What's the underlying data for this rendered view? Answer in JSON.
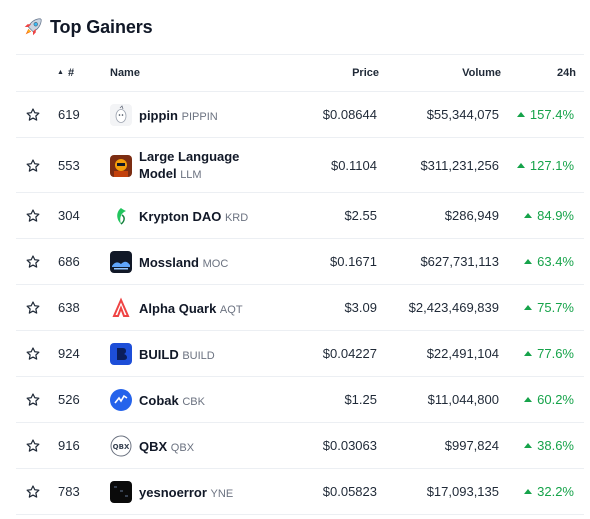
{
  "widget": {
    "title": "Top Gainers",
    "icon": "rocket-icon"
  },
  "columns": {
    "sort": "▲",
    "rank": "#",
    "name": "Name",
    "price": "Price",
    "volume": "Volume",
    "change": "24h"
  },
  "rows": [
    {
      "rank": "619",
      "name": "pippin",
      "symbol": "PIPPIN",
      "price": "$0.08644",
      "volume": "$55,344,075",
      "change": "157.4%"
    },
    {
      "rank": "553",
      "name": "Large Language Model",
      "symbol": "LLM",
      "price": "$0.1104",
      "volume": "$311,231,256",
      "change": "127.1%"
    },
    {
      "rank": "304",
      "name": "Krypton DAO",
      "symbol": "KRD",
      "price": "$2.55",
      "volume": "$286,949",
      "change": "84.9%"
    },
    {
      "rank": "686",
      "name": "Mossland",
      "symbol": "MOC",
      "price": "$0.1671",
      "volume": "$627,731,113",
      "change": "63.4%"
    },
    {
      "rank": "638",
      "name": "Alpha Quark",
      "symbol": "AQT",
      "price": "$3.09",
      "volume": "$2,423,469,839",
      "change": "75.7%"
    },
    {
      "rank": "924",
      "name": "BUILD",
      "symbol": "BUILD",
      "price": "$0.04227",
      "volume": "$22,491,104",
      "change": "77.6%"
    },
    {
      "rank": "526",
      "name": "Cobak",
      "symbol": "CBK",
      "price": "$1.25",
      "volume": "$11,044,800",
      "change": "60.2%"
    },
    {
      "rank": "916",
      "name": "QBX",
      "symbol": "QBX",
      "price": "$0.03063",
      "volume": "$997,824",
      "change": "38.6%"
    },
    {
      "rank": "783",
      "name": "yesnoerror",
      "symbol": "YNE",
      "price": "$0.05823",
      "volume": "$17,093,135",
      "change": "32.2%"
    }
  ],
  "colors": {
    "positive": "#16a34a",
    "divider": "#eceff3"
  }
}
